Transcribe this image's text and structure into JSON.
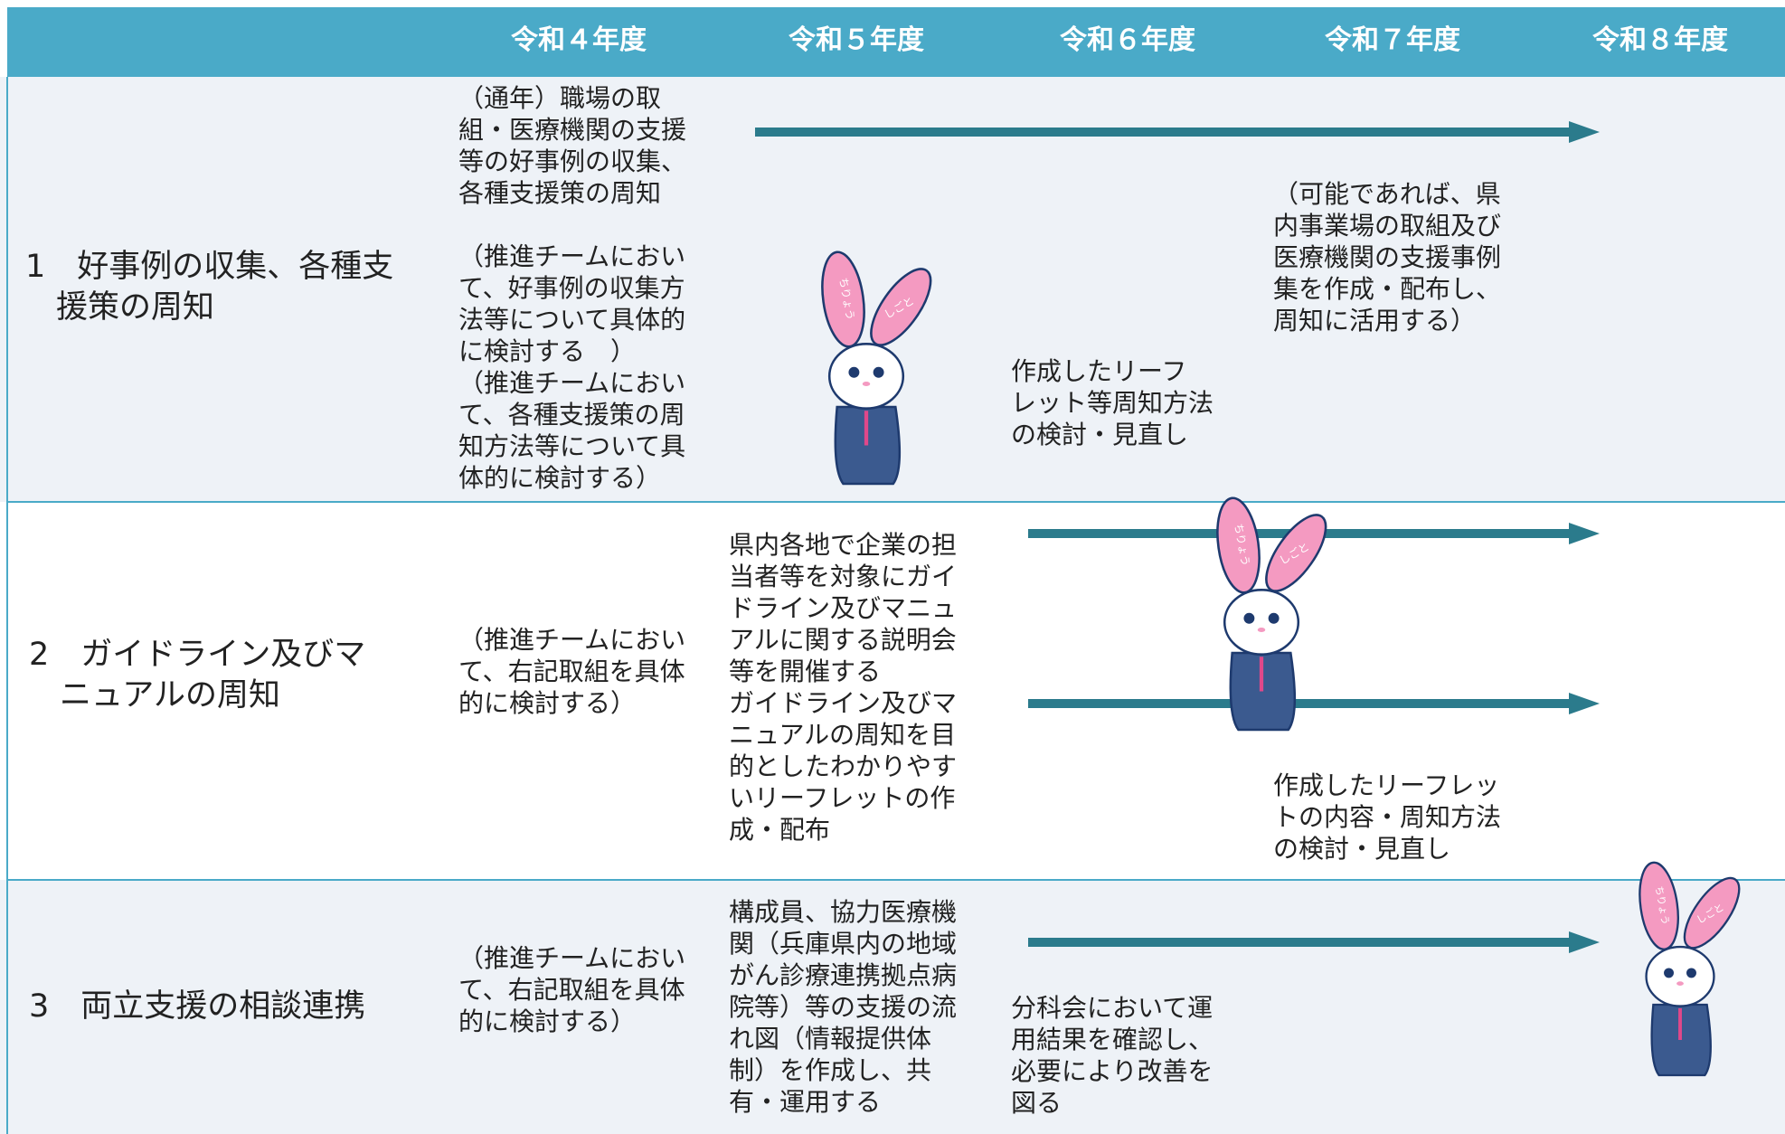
{
  "header": {
    "columns": [
      "令和４年度",
      "令和５年度",
      "令和６年度",
      "令和７年度",
      "令和８年度"
    ]
  },
  "rows": [
    {
      "label_lines": [
        "1　好事例の収集、各種支",
        "援策の周知"
      ],
      "texts": [
        {
          "lines": [
            "（通年）職場の取",
            "組・医療機関の支援",
            "等の好事例の収集、",
            "各種支援策の周知",
            "",
            "（推進チームにおい",
            "て、好事例の収集方",
            "法等について具体的",
            "に検討する　）",
            "（推進チームにおい",
            "て、各種支援策の周",
            "知方法等について具",
            "体的に検討する）"
          ]
        },
        {
          "lines": [
            "（可能であれば、県",
            "内事業場の取組及び",
            "医療機関の支援事例",
            "集を作成・配布し、",
            "周知に活用する）"
          ]
        },
        {
          "lines": [
            "作成したリーフ",
            "レット等周知方法",
            "の検討・見直し"
          ]
        }
      ]
    },
    {
      "label_lines": [
        "2　ガイドライン及びマ",
        "ニュアルの周知"
      ],
      "texts": [
        {
          "lines": [
            "（推進チームにおい",
            "て、右記取組を具体",
            "的に検討する）"
          ]
        },
        {
          "lines": [
            "県内各地で企業の担",
            "当者等を対象にガイ",
            "ドライン及びマニュ",
            "アルに関する説明会",
            "等を開催する",
            "ガイドライン及びマ",
            "ニュアルの周知を目",
            "的としたわかりやす",
            "いリーフレットの作",
            "成・配布"
          ]
        },
        {
          "lines": [
            "作成したリーフレッ",
            "トの内容・周知方法",
            "の検討・見直し"
          ]
        }
      ]
    },
    {
      "label_lines": [
        "3　両立支援の相談連携"
      ],
      "texts": [
        {
          "lines": [
            "（推進チームにおい",
            "て、右記取組を具体",
            "的に検討する）"
          ]
        },
        {
          "lines": [
            "構成員、協力医療機",
            "関（兵庫県内の地域",
            "がん診療連携拠点病",
            "院等）等の支援の流",
            "れ図（情報提供体",
            "制）を作成し、共",
            "有・運用する"
          ]
        },
        {
          "lines": [
            "分科会において運",
            "用結果を確認し、",
            "必要により改善を",
            "図る"
          ]
        }
      ]
    }
  ],
  "mascot": {
    "ear_labels": [
      "ちりょう",
      "しごと"
    ]
  }
}
